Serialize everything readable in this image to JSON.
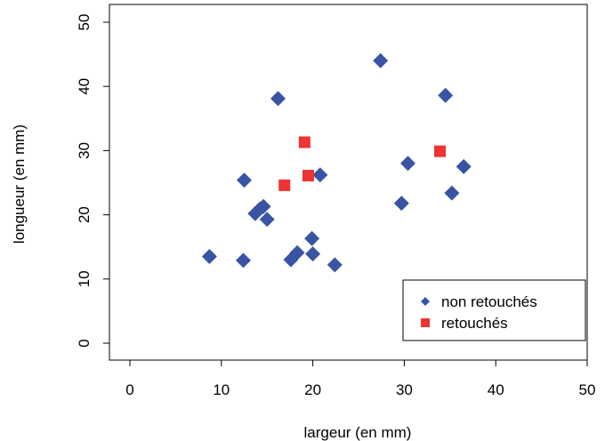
{
  "chart_data": {
    "type": "scatter",
    "title": "",
    "xlabel": "largeur (en mm)",
    "ylabel": "longueur (en mm)",
    "xlim": [
      0,
      50
    ],
    "ylim": [
      0,
      50
    ],
    "xticks": [
      0,
      10,
      20,
      30,
      40,
      50
    ],
    "yticks": [
      0,
      10,
      20,
      30,
      40,
      50
    ],
    "grid": false,
    "legend_position": "bottom-right",
    "series": [
      {
        "name": "non retouchés",
        "marker": "diamond",
        "color": "#3a54a4",
        "points": [
          [
            8.7,
            13.5
          ],
          [
            12.4,
            12.9
          ],
          [
            12.5,
            25.4
          ],
          [
            13.7,
            20.2
          ],
          [
            14.2,
            20.9
          ],
          [
            14.6,
            21.3
          ],
          [
            15.0,
            19.3
          ],
          [
            16.2,
            38.1
          ],
          [
            17.6,
            13.0
          ],
          [
            18.3,
            14.1
          ],
          [
            19.9,
            16.3
          ],
          [
            20.0,
            13.9
          ],
          [
            20.8,
            26.2
          ],
          [
            22.4,
            12.2
          ],
          [
            27.4,
            44.0
          ],
          [
            29.7,
            21.8
          ],
          [
            30.4,
            28.0
          ],
          [
            34.5,
            38.6
          ],
          [
            35.2,
            23.4
          ],
          [
            36.5,
            27.5
          ]
        ]
      },
      {
        "name": "retouchés",
        "marker": "square",
        "color": "#ee3333",
        "points": [
          [
            16.9,
            24.6
          ],
          [
            19.1,
            31.3
          ],
          [
            19.5,
            26.1
          ],
          [
            33.9,
            29.9
          ]
        ]
      }
    ]
  }
}
